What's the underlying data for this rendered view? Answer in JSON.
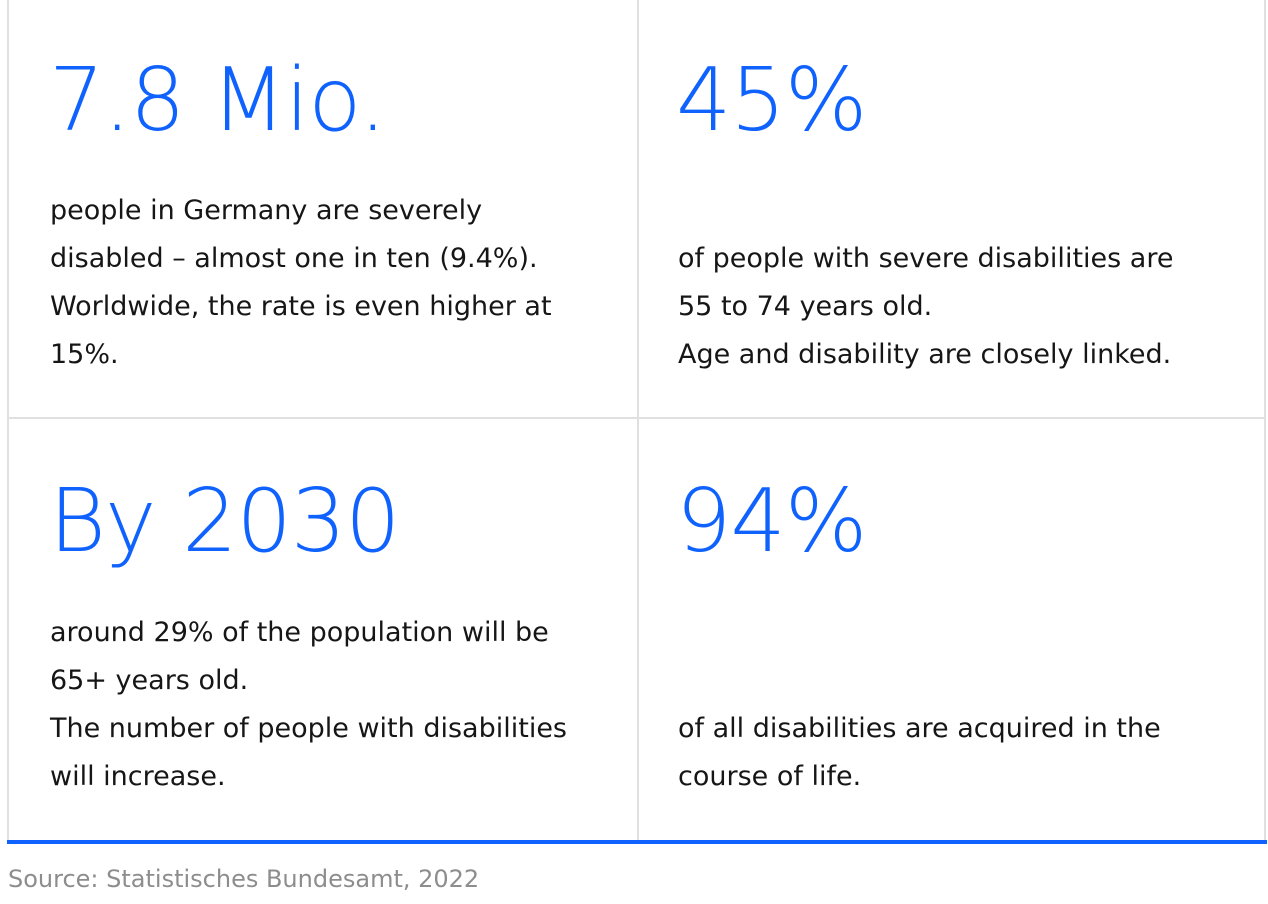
{
  "stats": [
    {
      "value": "7.8 Mio.",
      "description_lines": [
        "people in Germany are severely",
        "disabled – almost one in ten (9.4%).",
        "Worldwide, the rate is even higher at",
        "15%."
      ]
    },
    {
      "value": "45%",
      "description_lines": [
        "of people with severe disabilities are",
        "55 to 74 years old.",
        "Age and disability are closely linked."
      ]
    },
    {
      "value": "By 2030",
      "description_lines": [
        "around 29% of the population will be",
        "65+ years old.",
        "The number of people with disabilities",
        "will increase."
      ]
    },
    {
      "value": "94%",
      "description_lines": [
        "of all disabilities are acquired in the",
        "course of life."
      ]
    }
  ],
  "source": "Source: Statistisches Bundesamt, 2022",
  "colors": {
    "accent": "#0f62fe",
    "text": "#161616",
    "source_text": "#8d8d8d",
    "divider": "#e0e0e0"
  }
}
